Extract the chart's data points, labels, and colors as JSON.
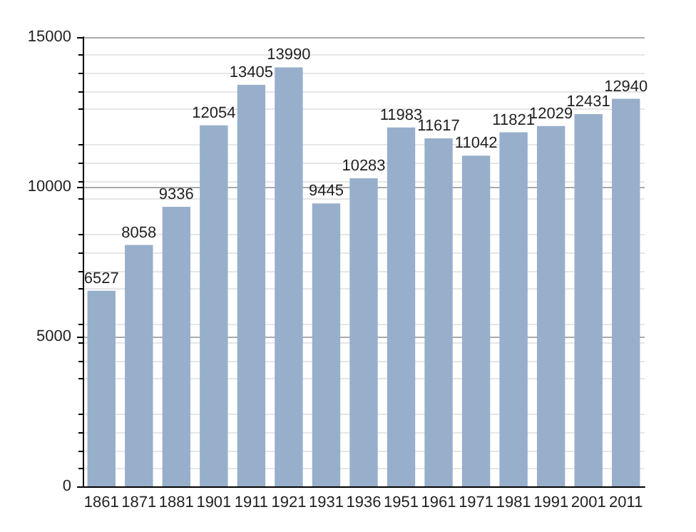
{
  "chart_data": {
    "type": "bar",
    "categories": [
      "1861",
      "1871",
      "1881",
      "1901",
      "1911",
      "1921",
      "1931",
      "1936",
      "1951",
      "1961",
      "1971",
      "1981",
      "1991",
      "2001",
      "2011"
    ],
    "values": [
      6527,
      8058,
      9336,
      12054,
      13405,
      13990,
      9445,
      10283,
      11983,
      11617,
      11042,
      11821,
      12029,
      12431,
      12940
    ],
    "color": "#97afcb",
    "ylim": [
      0,
      15000
    ],
    "yticks": [
      0,
      5000,
      10000,
      15000
    ],
    "grid": "y",
    "data_labels": true
  }
}
